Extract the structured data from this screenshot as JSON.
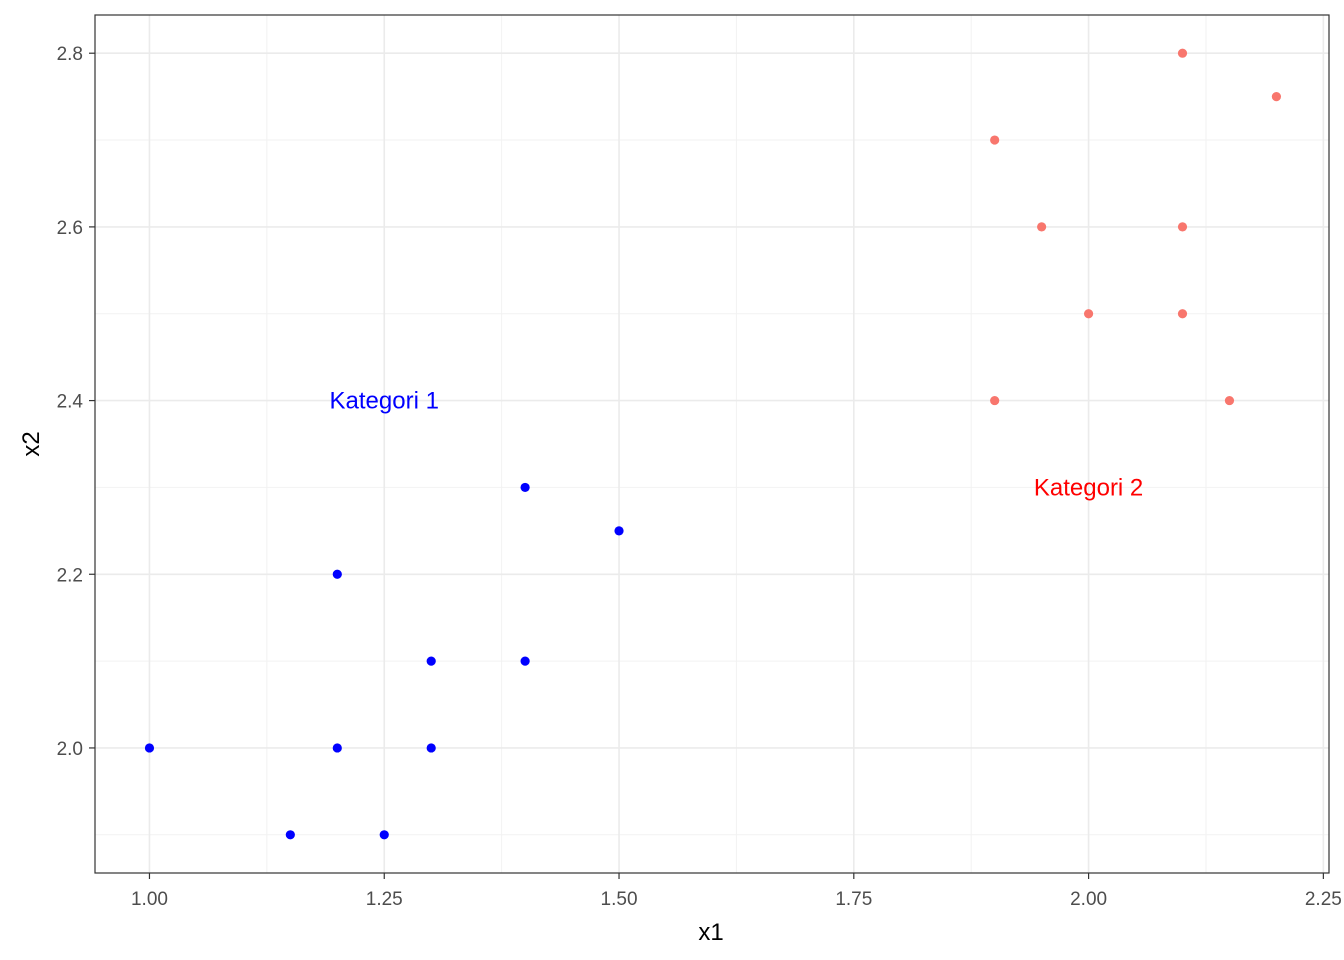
{
  "chart_data": {
    "type": "scatter",
    "title": "",
    "xlabel": "x1",
    "ylabel": "x2",
    "xlim": [
      0.942,
      2.256
    ],
    "ylim": [
      1.856,
      2.844
    ],
    "x_ticks": [
      1.0,
      1.25,
      1.5,
      1.75,
      2.0,
      2.25
    ],
    "x_tick_labels": [
      "1.00",
      "1.25",
      "1.50",
      "1.75",
      "2.00",
      "2.25"
    ],
    "y_ticks": [
      2.0,
      2.2,
      2.4,
      2.6,
      2.8
    ],
    "y_tick_labels": [
      "2.0",
      "2.2",
      "2.4",
      "2.6",
      "2.8"
    ],
    "grid": true,
    "series": [
      {
        "color": "#0000ff",
        "points": [
          {
            "x": 1.0,
            "y": 2.0
          },
          {
            "x": 1.15,
            "y": 1.9
          },
          {
            "x": 1.2,
            "y": 2.0
          },
          {
            "x": 1.2,
            "y": 2.2
          },
          {
            "x": 1.25,
            "y": 1.9
          },
          {
            "x": 1.3,
            "y": 2.0
          },
          {
            "x": 1.3,
            "y": 2.1
          },
          {
            "x": 1.4,
            "y": 2.1
          },
          {
            "x": 1.4,
            "y": 2.3
          },
          {
            "x": 1.5,
            "y": 2.25
          }
        ]
      },
      {
        "color": "#f8766d",
        "points": [
          {
            "x": 1.9,
            "y": 2.4
          },
          {
            "x": 1.9,
            "y": 2.7
          },
          {
            "x": 1.95,
            "y": 2.6
          },
          {
            "x": 2.0,
            "y": 2.5
          },
          {
            "x": 2.1,
            "y": 2.5
          },
          {
            "x": 2.1,
            "y": 2.6
          },
          {
            "x": 2.1,
            "y": 2.8
          },
          {
            "x": 2.15,
            "y": 2.4
          },
          {
            "x": 2.2,
            "y": 2.75
          }
        ]
      }
    ],
    "annotations": [
      {
        "text": "Kategori 1",
        "x": 1.25,
        "y": 2.4,
        "color": "#0000ff"
      },
      {
        "text": "Kategori 2",
        "x": 2.0,
        "y": 2.3,
        "color": "#ff0000"
      }
    ]
  }
}
